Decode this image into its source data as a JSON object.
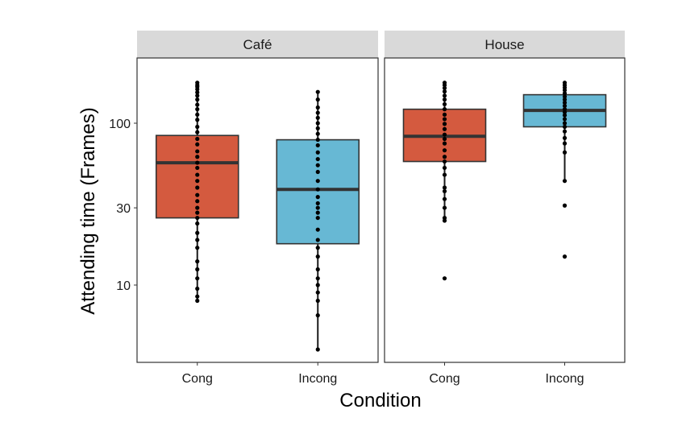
{
  "chart_data": {
    "type": "box",
    "title": "",
    "xlabel": "Condition",
    "ylabel": "Attending time (Frames)",
    "y_scale": "log10",
    "ylim": [
      3.5,
      220
    ],
    "y_ticks": [
      10,
      30,
      100
    ],
    "y_tick_labels": [
      "10",
      "30",
      "100"
    ],
    "categories": [
      "Cong",
      "Incong"
    ],
    "grid": false,
    "legend": "none",
    "colors": {
      "Cong": "#d45a3f",
      "Incong": "#67b8d4"
    },
    "panels": [
      {
        "name": "Café",
        "boxes": [
          {
            "category": "Cong",
            "lower_whisker": 8,
            "q1": 26,
            "median": 57,
            "q3": 84,
            "upper_whisker": 178,
            "points": [
              178,
              172,
              168,
              162,
              155,
              148,
              140,
              130,
              122,
              113,
              105,
              95,
              88,
              80,
              74,
              67,
              62,
              57,
              53,
              48,
              44,
              40,
              36,
              33,
              30,
              28,
              26,
              24,
              21,
              19,
              17,
              14,
              12.5,
              11,
              9.5,
              8.5,
              8
            ]
          },
          {
            "category": "Incong",
            "lower_whisker": 4,
            "q1": 18,
            "median": 39,
            "q3": 79,
            "upper_whisker": 156,
            "points": [
              156,
              140,
              125,
              116,
              108,
              100,
              93,
              86,
              79,
              73,
              66,
              60,
              55,
              50,
              44,
              39,
              35,
              32,
              30,
              28,
              26,
              22,
              19,
              17,
              15,
              12.5,
              11,
              10,
              9,
              8,
              6.5,
              4
            ]
          }
        ]
      },
      {
        "name": "House",
        "boxes": [
          {
            "category": "Cong",
            "lower_whisker": 25,
            "q1": 58,
            "median": 83,
            "q3": 122,
            "upper_whisker": 178,
            "points": [
              178,
              172,
              165,
              157,
              148,
              140,
              131,
              122,
              113,
              106,
              99,
              92,
              85,
              80,
              75,
              68,
              62,
              58,
              53,
              48,
              40,
              38,
              34,
              30,
              26,
              25,
              11
            ]
          },
          {
            "category": "Incong",
            "lower_whisker": 44,
            "q1": 95,
            "median": 120,
            "q3": 150,
            "upper_whisker": 178,
            "points": [
              178,
              172,
              166,
              160,
              153,
              146,
              140,
              134,
              128,
              122,
              117,
              112,
              106,
              100,
              95,
              89,
              81,
              75,
              66,
              44,
              31,
              15
            ]
          }
        ]
      }
    ]
  }
}
